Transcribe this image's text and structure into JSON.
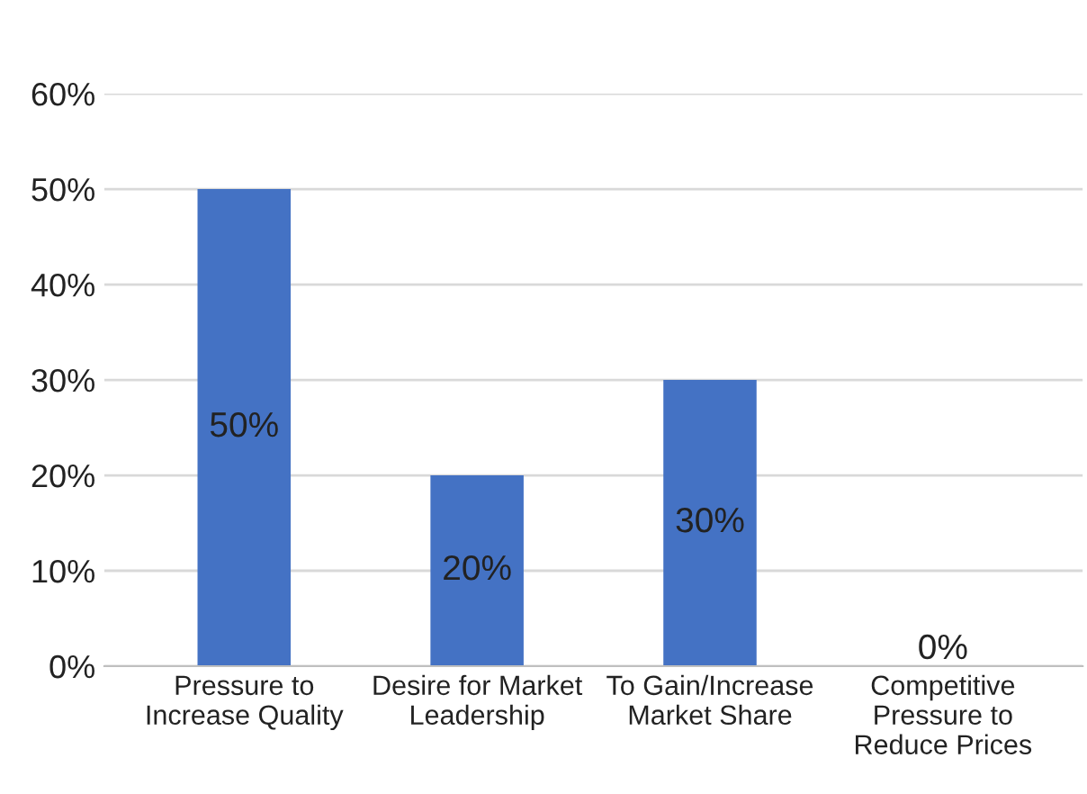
{
  "chart_data": {
    "type": "bar",
    "categories": [
      "Pressure to\nIncrease Quality",
      "Desire for Market\nLeadership",
      "To Gain/Increase\nMarket Share",
      "Competitive\nPressure to\nReduce Prices"
    ],
    "values": [
      50,
      20,
      30,
      0
    ],
    "value_labels": [
      "50%",
      "20%",
      "30%",
      "0%"
    ],
    "color": "#4472c4",
    "ylim": [
      0,
      60
    ],
    "yticks": [
      {
        "value": 0,
        "label": "0%"
      },
      {
        "value": 10,
        "label": "10%"
      },
      {
        "value": 20,
        "label": "20%"
      },
      {
        "value": 30,
        "label": "30%"
      },
      {
        "value": 40,
        "label": "40%"
      },
      {
        "value": 50,
        "label": "50%"
      },
      {
        "value": 60,
        "label": "60%"
      }
    ],
    "grid": "y",
    "legend": false
  }
}
